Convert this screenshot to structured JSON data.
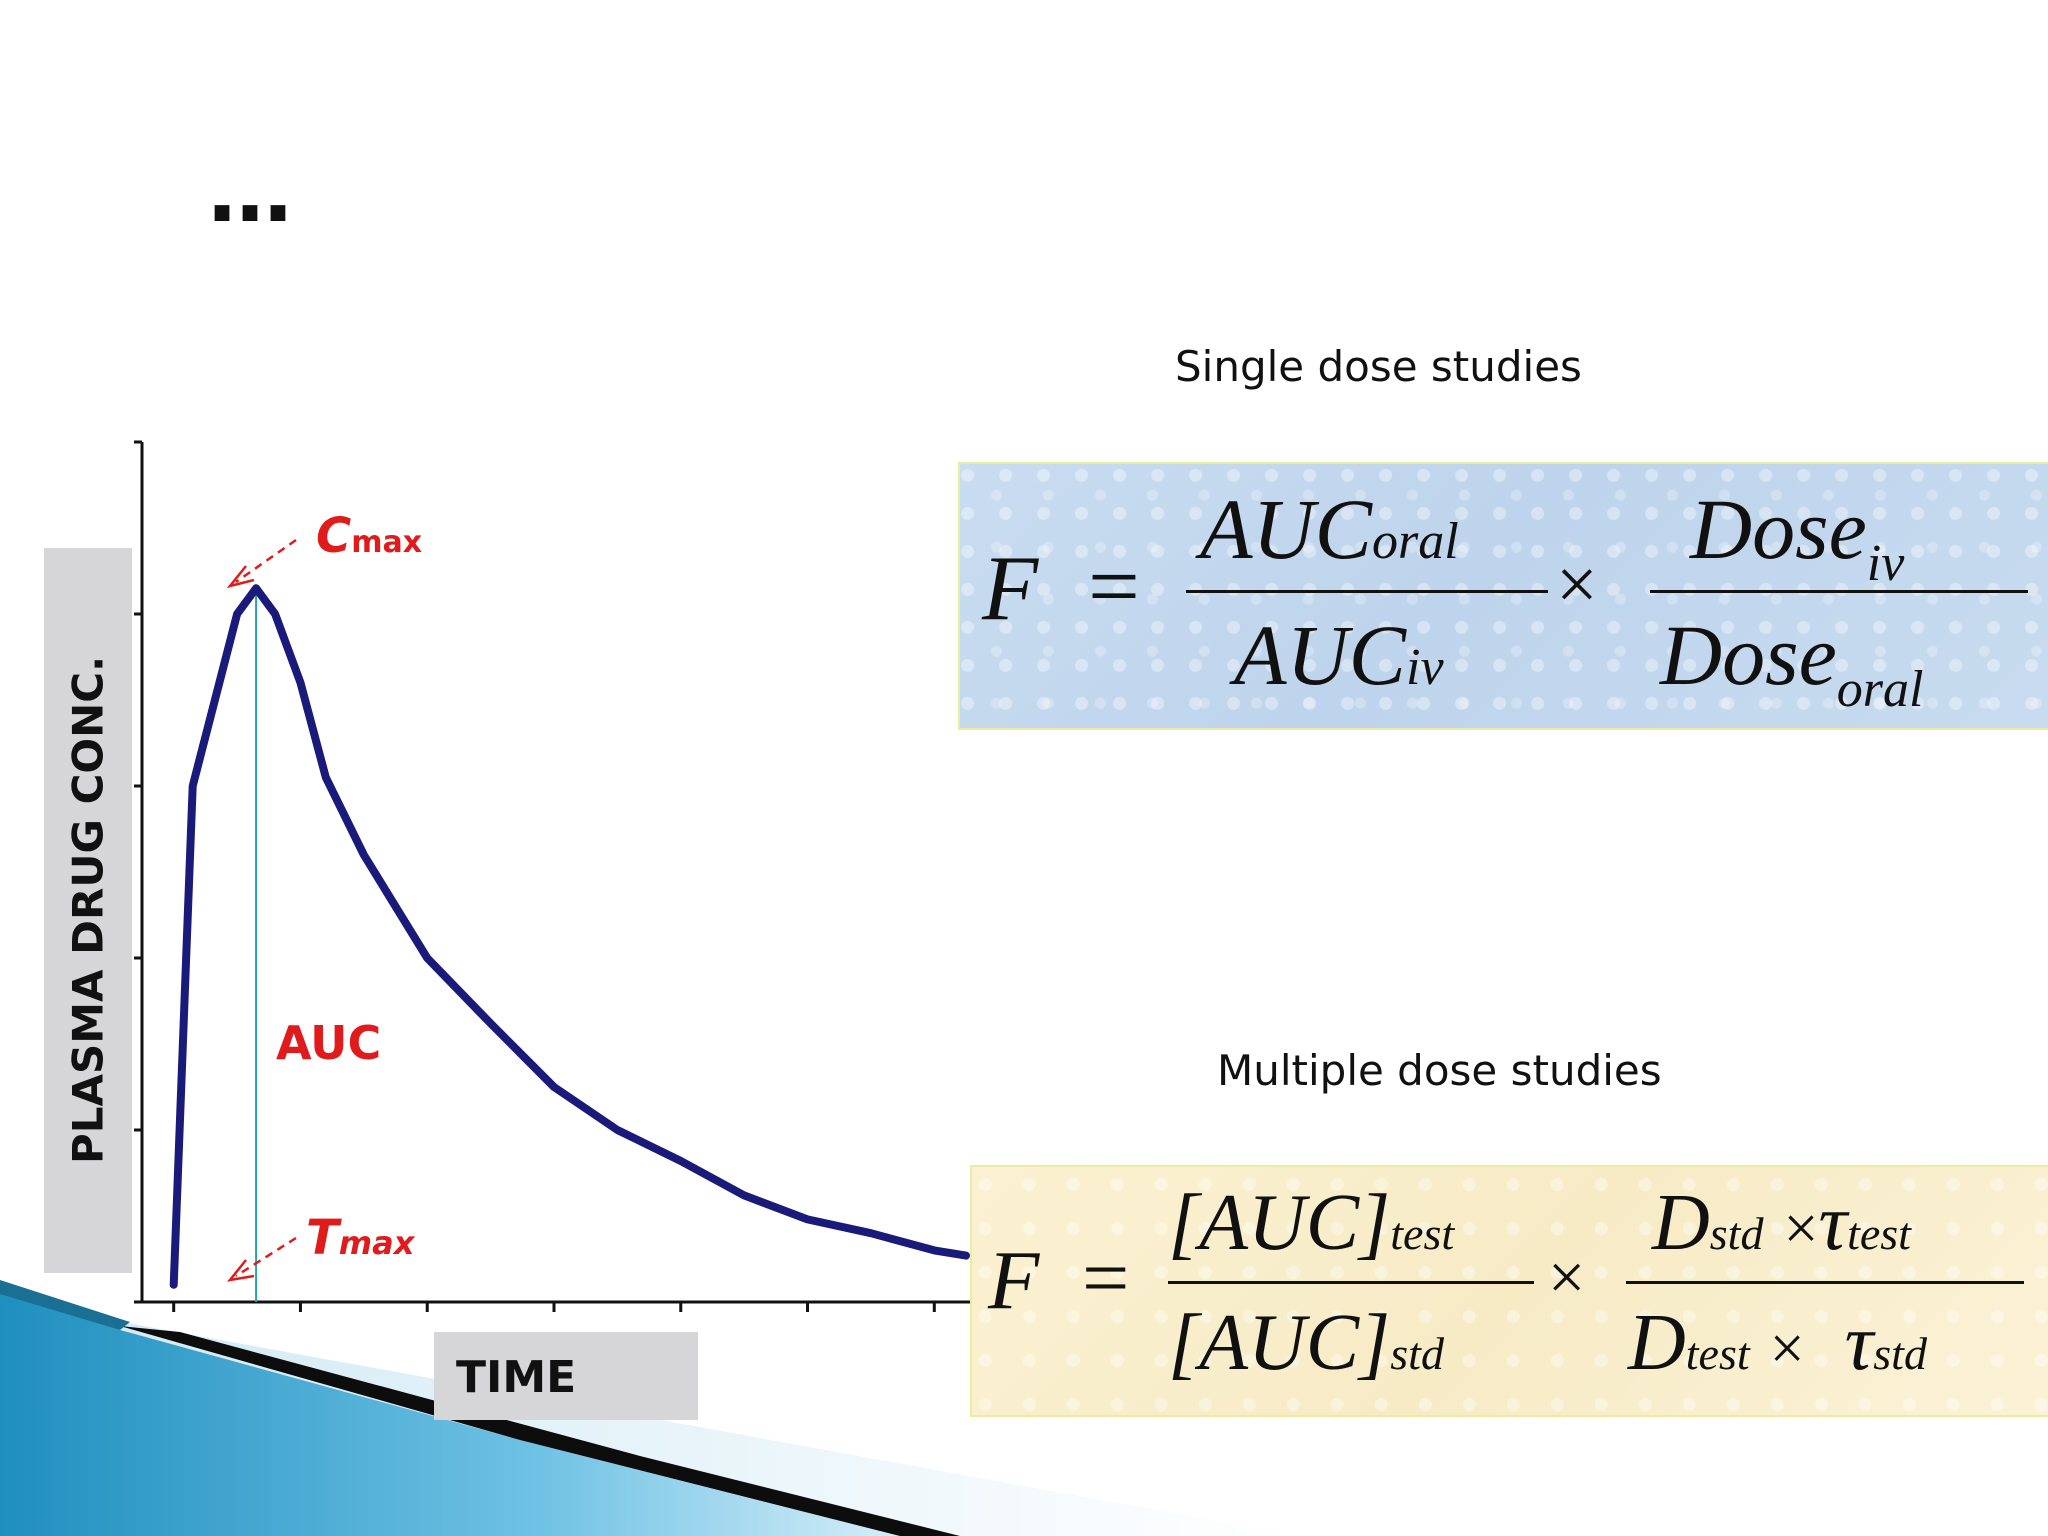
{
  "slide": {
    "title": "…"
  },
  "chart": {
    "y_axis_label": "PLASMA DRUG CONC.",
    "x_axis_label": "TIME",
    "annotations": {
      "cmax_main": "C",
      "cmax_sub": "max",
      "tmax_main": "T",
      "tmax_sub": "max",
      "auc": "AUC"
    }
  },
  "chart_data": {
    "type": "line",
    "title": "",
    "xlabel": "TIME",
    "ylabel": "PLASMA DRUG CONC.",
    "x": [
      0,
      0.15,
      0.5,
      0.65,
      0.8,
      1.0,
      1.2,
      1.5,
      2.0,
      2.5,
      3.0,
      3.5,
      4.0,
      4.5,
      5.0,
      5.5,
      6.0,
      6.25
    ],
    "series": [
      {
        "values": [
          0.1,
          3.0,
          4.0,
          4.15,
          4.0,
          3.6,
          3.05,
          2.6,
          2.0,
          1.62,
          1.25,
          1.0,
          0.82,
          0.62,
          0.48,
          0.4,
          0.3,
          0.27
        ]
      }
    ],
    "xlim": [
      -0.25,
      6.4
    ],
    "ylim": [
      0,
      5
    ],
    "grid": false,
    "colors": {
      "curve": "#1a1a7a",
      "tmax_line": "#2aa0a8",
      "annotation": "#e01b1b"
    }
  },
  "formulas": {
    "single": {
      "heading": "Single dose studies",
      "lhs": "F",
      "equals": "=",
      "num1_main": "AUC",
      "num1_sub": "oral",
      "den1_main": "AUC",
      "den1_sub": "iv",
      "times": "×",
      "num2_main": "Dose",
      "num2_sub": "iv",
      "den2_main": "Dose",
      "den2_sub": "oral"
    },
    "multiple": {
      "heading": "Multiple dose studies",
      "lhs": "F",
      "equals": "=",
      "num1_main": "[AUC]",
      "num1_sub": "test",
      "den1_main": "[AUC]",
      "den1_sub": "std",
      "times": "×",
      "num2_a": "D",
      "num2_a_sub": "std",
      "num2_times": "×",
      "num2_b": "τ",
      "num2_b_sub": "test",
      "den2_a": "D",
      "den2_a_sub": "test",
      "den2_times": "×",
      "den2_b": "τ",
      "den2_b_sub": "std"
    }
  }
}
